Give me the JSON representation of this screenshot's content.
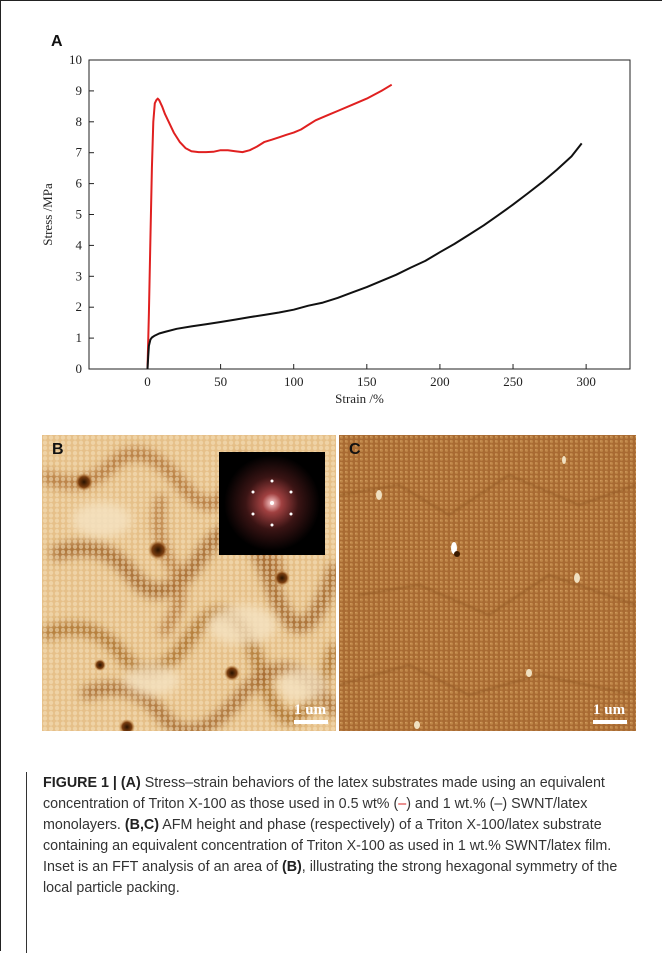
{
  "panel_labels": {
    "a": "A",
    "b": "B",
    "c": "C"
  },
  "chart_data": {
    "type": "line",
    "title": "",
    "xlabel": "Strain /%",
    "ylabel": "Stress /MPa",
    "xlim": [
      -40,
      330
    ],
    "ylim": [
      0,
      10
    ],
    "xticks": [
      0,
      50,
      100,
      150,
      200,
      250,
      300
    ],
    "yticks": [
      0,
      1,
      2,
      3,
      4,
      5,
      6,
      7,
      8,
      9,
      10
    ],
    "grid": false,
    "legend": "none",
    "series": [
      {
        "color": "#e02020",
        "x": [
          0,
          1,
          2,
          3,
          4,
          5,
          6,
          7,
          8,
          10,
          12,
          15,
          18,
          22,
          26,
          30,
          35,
          40,
          45,
          50,
          55,
          60,
          65,
          70,
          75,
          80,
          85,
          90,
          95,
          100,
          105,
          110,
          115,
          120,
          125,
          130,
          140,
          150,
          160,
          167
        ],
        "y": [
          0,
          1.8,
          4.2,
          6.5,
          8.0,
          8.6,
          8.7,
          8.75,
          8.7,
          8.5,
          8.25,
          7.95,
          7.65,
          7.35,
          7.15,
          7.05,
          7.02,
          7.02,
          7.03,
          7.08,
          7.08,
          7.05,
          7.02,
          7.08,
          7.2,
          7.35,
          7.42,
          7.5,
          7.58,
          7.65,
          7.75,
          7.9,
          8.05,
          8.15,
          8.25,
          8.35,
          8.55,
          8.75,
          9.0,
          9.2
        ]
      },
      {
        "color": "#111111",
        "x": [
          0,
          0.5,
          1,
          2,
          3,
          5,
          8,
          12,
          20,
          30,
          40,
          50,
          60,
          70,
          80,
          90,
          100,
          110,
          120,
          130,
          140,
          150,
          160,
          170,
          180,
          190,
          200,
          210,
          220,
          230,
          240,
          250,
          260,
          270,
          280,
          290,
          297
        ],
        "y": [
          0,
          0.4,
          0.75,
          0.95,
          1.02,
          1.08,
          1.15,
          1.2,
          1.3,
          1.38,
          1.45,
          1.52,
          1.6,
          1.68,
          1.75,
          1.83,
          1.92,
          2.05,
          2.15,
          2.3,
          2.48,
          2.65,
          2.85,
          3.05,
          3.28,
          3.5,
          3.78,
          4.05,
          4.35,
          4.65,
          4.98,
          5.32,
          5.68,
          6.05,
          6.45,
          6.88,
          7.3
        ]
      }
    ]
  },
  "panel_b": {
    "scale_label": "1 um"
  },
  "panel_c": {
    "scale_label": "1 um"
  },
  "caption": {
    "fig": "FIGURE 1 | ",
    "a_ref": "(A)",
    "t1": " Stress–strain behaviors of the latex substrates made using an equivalent concentration of Triton X-100 as those used in 0.5 wt% (",
    "red_mark": "–",
    "t2": ") and 1 wt.% (–) SWNT/latex monolayers. ",
    "bc_ref": "(B,C)",
    "t3": " AFM height and phase (respectively) of a Triton X-100/latex substrate containing an equivalent concentration of Triton X-100 as used in 1 wt.% SWNT/latex film. Inset is an FFT analysis of an area of ",
    "b_ref": "(B)",
    "t4": ", illustrating the strong hexagonal symmetry of the local particle packing."
  }
}
